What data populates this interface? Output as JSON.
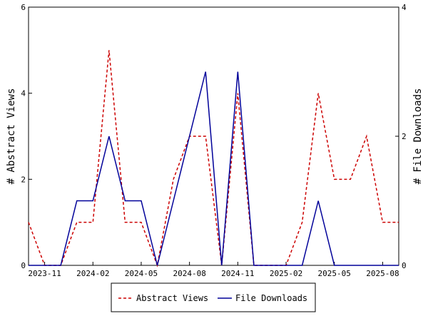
{
  "chart_data": {
    "type": "line",
    "title": "",
    "x_tick_labels": [
      "2023-11",
      "2024-02",
      "2024-05",
      "2024-08",
      "2024-11",
      "2025-02",
      "2025-05",
      "2025-08"
    ],
    "ylabel_left": "# Abstract Views",
    "ylabel_right": "# File Downloads",
    "ylim_left": [
      0,
      6
    ],
    "ylim_right": [
      0,
      4
    ],
    "yticks_left": [
      0,
      2,
      4,
      6
    ],
    "yticks_right": [
      0,
      2,
      4
    ],
    "grid": false,
    "legend_position": "bottom-center",
    "x": [
      "2023-10",
      "2023-11",
      "2023-12",
      "2024-01",
      "2024-02",
      "2024-03",
      "2024-04",
      "2024-05",
      "2024-06",
      "2024-07",
      "2024-08",
      "2024-09",
      "2024-10",
      "2024-11",
      "2024-12",
      "2025-01",
      "2025-02",
      "2025-03",
      "2025-04",
      "2025-05",
      "2025-06",
      "2025-07",
      "2025-08",
      "2025-09"
    ],
    "series": [
      {
        "name": "Abstract Views",
        "axis": "left",
        "color": "#cc0000",
        "dash": true,
        "values": [
          1,
          0,
          0,
          1,
          1,
          5,
          1,
          1,
          0,
          2,
          3,
          3,
          0,
          4,
          0,
          0,
          0,
          1,
          4,
          2,
          2,
          3,
          1,
          1
        ]
      },
      {
        "name": "File Downloads",
        "axis": "right",
        "color": "#000099",
        "dash": false,
        "values": [
          0,
          0,
          0,
          1,
          1,
          2,
          1,
          1,
          0,
          1,
          2,
          3,
          0,
          3,
          0,
          0,
          0,
          0,
          1,
          0,
          0,
          0,
          0,
          0
        ]
      }
    ]
  }
}
